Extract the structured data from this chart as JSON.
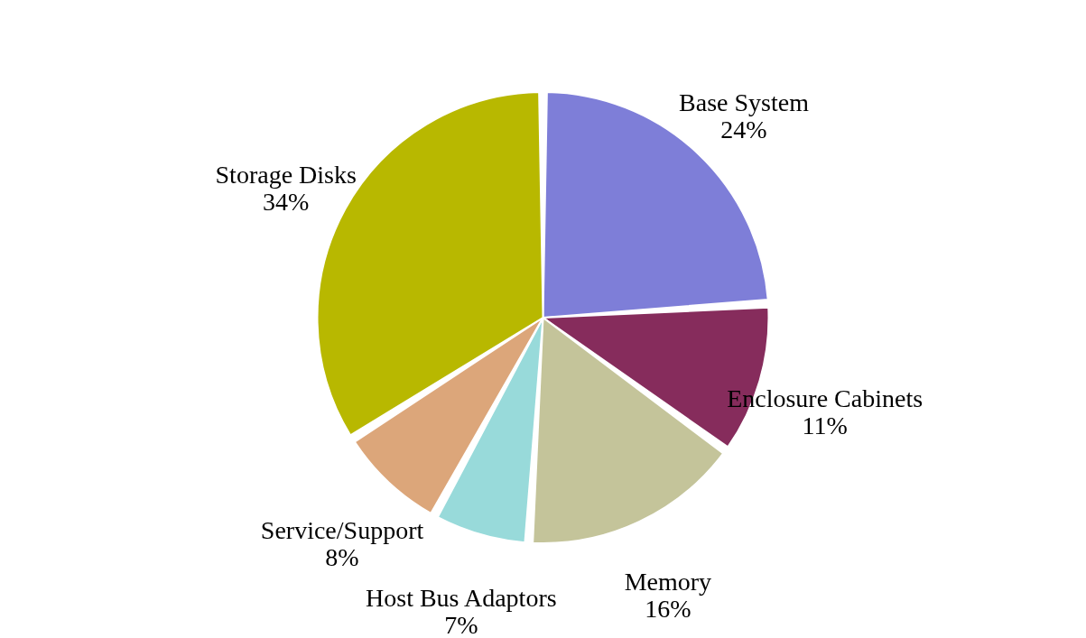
{
  "chart_data": {
    "type": "pie",
    "categories": [
      "Base System",
      "Enclosure Cabinets",
      "Memory",
      "Host Bus Adaptors",
      "Service/Support",
      "Storage Disks"
    ],
    "values": [
      24,
      11,
      16,
      7,
      8,
      34
    ],
    "value_labels": [
      "24%",
      "11%",
      "16%",
      "7%",
      "8%",
      "34%"
    ],
    "colors": [
      "#7e7ed8",
      "#862c5c",
      "#c4c49a",
      "#98dada",
      "#dca67a",
      "#b8b800"
    ],
    "legend": false
  }
}
